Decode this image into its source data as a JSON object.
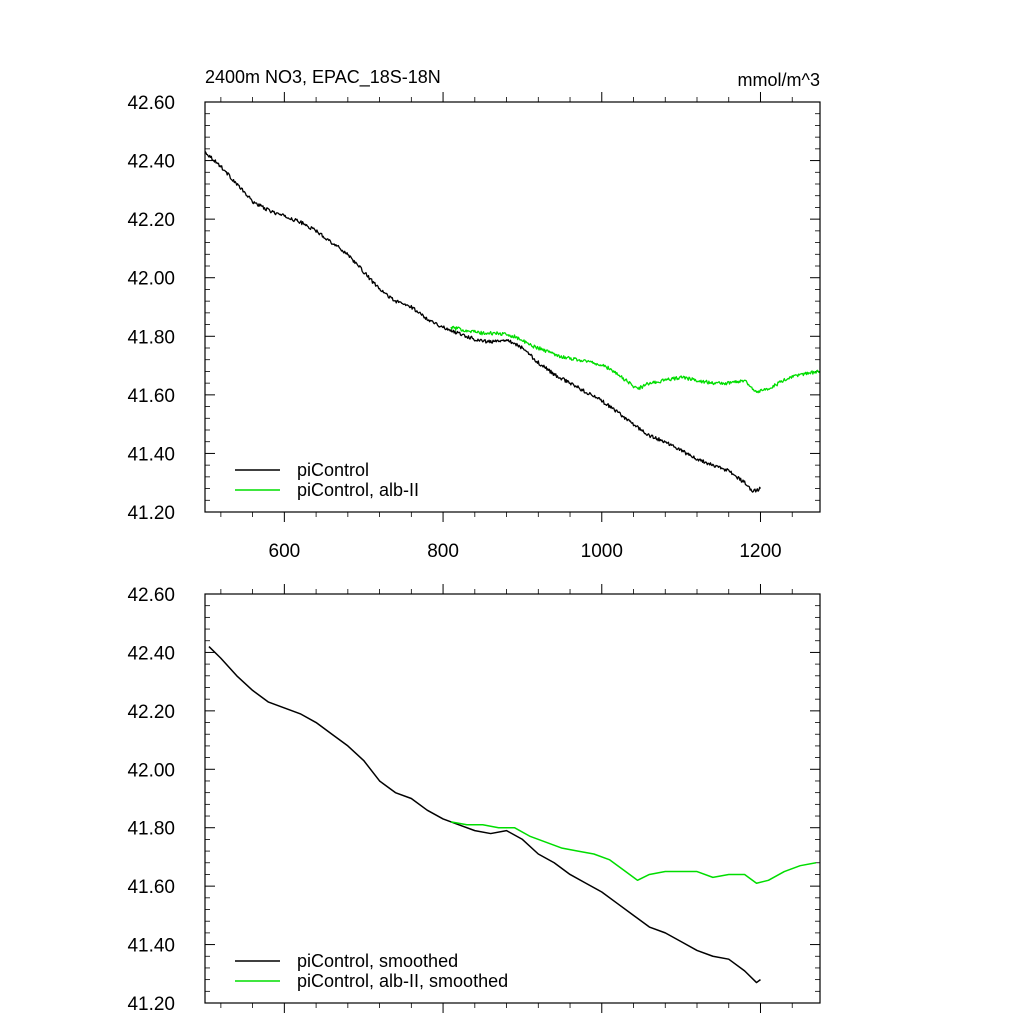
{
  "chart_data": [
    {
      "type": "line",
      "title": "2400m NO3, EPAC_18S-18N",
      "units": "mmol/m^3",
      "xlim": [
        500,
        1275
      ],
      "ylim": [
        41.2,
        42.6
      ],
      "x_ticks": [
        600,
        800,
        1000,
        1200
      ],
      "x_tick_labels": [
        "600",
        "800",
        "1000",
        "1200"
      ],
      "y_ticks": [
        41.2,
        41.4,
        41.6,
        41.8,
        42.0,
        42.2,
        42.4,
        42.6
      ],
      "y_tick_labels": [
        "41.20",
        "41.40",
        "41.60",
        "41.80",
        "42.00",
        "42.20",
        "42.40",
        "42.60"
      ],
      "grid": false,
      "legend_position": "bottom-left",
      "series": [
        {
          "name": "piControl",
          "color": "#000000",
          "noisy": true,
          "x": [
            500,
            520,
            540,
            560,
            580,
            600,
            620,
            640,
            660,
            680,
            700,
            720,
            740,
            760,
            780,
            800,
            820,
            840,
            860,
            880,
            900,
            920,
            940,
            960,
            980,
            1000,
            1020,
            1040,
            1060,
            1080,
            1100,
            1120,
            1140,
            1160,
            1180,
            1190,
            1200
          ],
          "values": [
            42.43,
            42.38,
            42.32,
            42.26,
            42.23,
            42.21,
            42.19,
            42.16,
            42.12,
            42.08,
            42.02,
            41.96,
            41.92,
            41.9,
            41.86,
            41.83,
            41.81,
            41.79,
            41.78,
            41.79,
            41.76,
            41.71,
            41.67,
            41.64,
            41.61,
            41.58,
            41.54,
            41.5,
            41.46,
            41.44,
            41.41,
            41.38,
            41.36,
            41.34,
            41.3,
            41.27,
            41.28
          ]
        },
        {
          "name": "piControl, alb-II",
          "color": "#00dd00",
          "noisy": true,
          "x": [
            810,
            830,
            850,
            870,
            890,
            910,
            930,
            950,
            970,
            990,
            1010,
            1030,
            1045,
            1060,
            1080,
            1100,
            1120,
            1140,
            1160,
            1180,
            1195,
            1210,
            1230,
            1250,
            1275
          ],
          "values": [
            41.83,
            41.82,
            41.81,
            41.81,
            41.8,
            41.77,
            41.75,
            41.73,
            41.72,
            41.71,
            41.69,
            41.65,
            41.62,
            41.64,
            41.65,
            41.66,
            41.65,
            41.64,
            41.64,
            41.65,
            41.61,
            41.62,
            41.65,
            41.67,
            41.68
          ]
        }
      ]
    },
    {
      "type": "line",
      "xlim": [
        500,
        1275
      ],
      "ylim": [
        41.2,
        42.6
      ],
      "x_ticks": [
        600,
        800,
        1000,
        1200
      ],
      "y_ticks": [
        41.2,
        41.4,
        41.6,
        41.8,
        42.0,
        42.2,
        42.4,
        42.6
      ],
      "y_tick_labels": [
        "41.20",
        "41.40",
        "41.60",
        "41.80",
        "42.00",
        "42.20",
        "42.40",
        "42.60"
      ],
      "grid": false,
      "legend_position": "bottom-left",
      "series": [
        {
          "name": "piControl, smoothed",
          "color": "#000000",
          "noisy": false,
          "x": [
            505,
            520,
            540,
            560,
            580,
            600,
            620,
            640,
            660,
            680,
            700,
            720,
            740,
            760,
            780,
            800,
            820,
            840,
            860,
            880,
            900,
            920,
            940,
            960,
            980,
            1000,
            1020,
            1040,
            1060,
            1080,
            1100,
            1120,
            1140,
            1160,
            1180,
            1195,
            1200
          ],
          "values": [
            42.42,
            42.38,
            42.32,
            42.27,
            42.23,
            42.21,
            42.19,
            42.16,
            42.12,
            42.08,
            42.03,
            41.96,
            41.92,
            41.9,
            41.86,
            41.83,
            41.81,
            41.79,
            41.78,
            41.79,
            41.76,
            41.71,
            41.68,
            41.64,
            41.61,
            41.58,
            41.54,
            41.5,
            41.46,
            41.44,
            41.41,
            41.38,
            41.36,
            41.35,
            41.31,
            41.27,
            41.28
          ]
        },
        {
          "name": "piControl, alb-II, smoothed",
          "color": "#00dd00",
          "noisy": false,
          "x": [
            810,
            830,
            850,
            870,
            890,
            910,
            930,
            950,
            970,
            990,
            1010,
            1030,
            1045,
            1060,
            1080,
            1100,
            1120,
            1140,
            1160,
            1180,
            1195,
            1210,
            1230,
            1250,
            1270
          ],
          "values": [
            41.82,
            41.81,
            41.81,
            41.8,
            41.8,
            41.77,
            41.75,
            41.73,
            41.72,
            41.71,
            41.69,
            41.65,
            41.62,
            41.64,
            41.65,
            41.65,
            41.65,
            41.63,
            41.64,
            41.64,
            41.61,
            41.62,
            41.65,
            41.67,
            41.68
          ]
        }
      ]
    }
  ]
}
